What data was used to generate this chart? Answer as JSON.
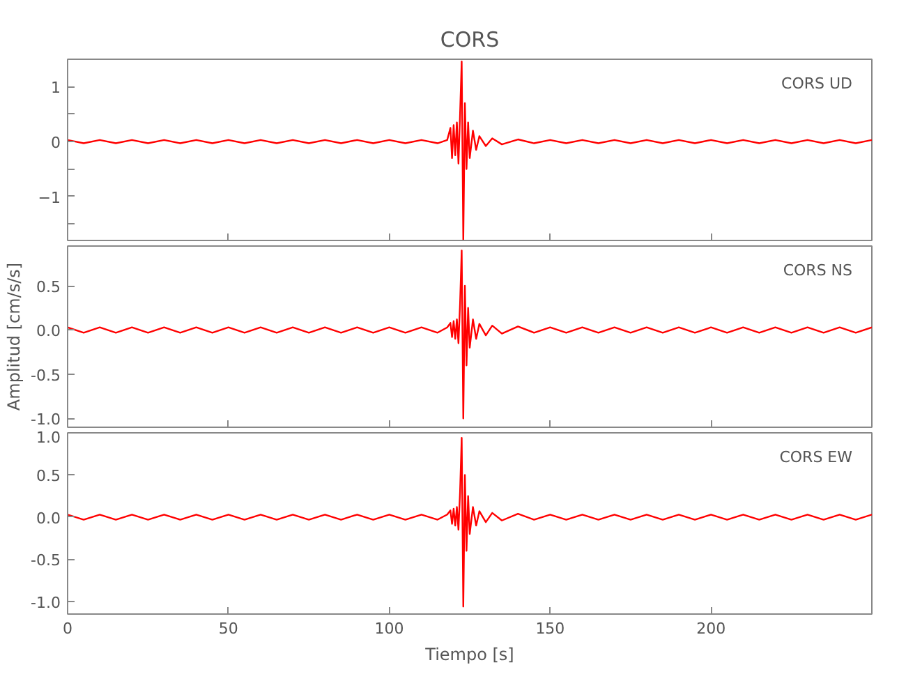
{
  "chart_data": [
    {
      "type": "line",
      "title": "CORS",
      "annotations": [
        "CORS   UD"
      ],
      "xlim": [
        0,
        250
      ],
      "xticks": [
        {
          "value": 0,
          "label": null
        },
        {
          "value": 50,
          "label": null
        },
        {
          "value": 100,
          "label": null
        },
        {
          "value": 150,
          "label": null
        },
        {
          "value": 200,
          "label": null
        }
      ],
      "ylim": [
        -1.8,
        1.5
      ],
      "yticks": [
        {
          "value": -1.5,
          "label": null
        },
        -1,
        {
          "value": -0.5,
          "label": null
        },
        0,
        {
          "value": 0.5,
          "label": null
        },
        1
      ],
      "tick_labels": "y",
      "series": [
        {
          "color": "#ff0000",
          "x": [
            0,
            5,
            10,
            15,
            20,
            25,
            30,
            35,
            40,
            45,
            50,
            55,
            60,
            65,
            70,
            75,
            80,
            85,
            90,
            95,
            100,
            105,
            110,
            115,
            118,
            119,
            119.5,
            120,
            120.5,
            121,
            121.5,
            122,
            122.5,
            123,
            123.5,
            124,
            124.5,
            125,
            126,
            127,
            128,
            130,
            132,
            135,
            140,
            145,
            150,
            155,
            160,
            165,
            170,
            175,
            180,
            185,
            190,
            195,
            200,
            205,
            210,
            215,
            220,
            225,
            230,
            235,
            240,
            245,
            250
          ],
          "values": [
            0.03,
            -0.03,
            0.03,
            -0.03,
            0.03,
            -0.03,
            0.03,
            -0.03,
            0.03,
            -0.03,
            0.03,
            -0.03,
            0.03,
            -0.03,
            0.03,
            -0.03,
            0.03,
            -0.03,
            0.03,
            -0.03,
            0.03,
            -0.03,
            0.03,
            -0.03,
            0.03,
            0.25,
            -0.3,
            0.3,
            -0.25,
            0.35,
            -0.4,
            0.5,
            1.46,
            -1.8,
            0.7,
            -0.5,
            0.35,
            -0.3,
            0.2,
            -0.15,
            0.1,
            -0.08,
            0.06,
            -0.05,
            0.04,
            -0.03,
            0.03,
            -0.03,
            0.03,
            -0.03,
            0.03,
            -0.03,
            0.03,
            -0.03,
            0.03,
            -0.03,
            0.03,
            -0.03,
            0.03,
            -0.03,
            0.03,
            -0.03,
            0.03,
            -0.03,
            0.03,
            -0.03,
            0.03
          ]
        }
      ]
    },
    {
      "type": "line",
      "ylabel": "Amplitud [cm/s/s]",
      "annotations": [
        "CORS   NS"
      ],
      "xlim": [
        0,
        250
      ],
      "xticks": [
        {
          "value": 0,
          "label": null
        },
        {
          "value": 50,
          "label": null
        },
        {
          "value": 100,
          "label": null
        },
        {
          "value": 150,
          "label": null
        },
        {
          "value": 200,
          "label": null
        }
      ],
      "ylim": [
        -1.1,
        0.95
      ],
      "yticks": [
        {
          "value": -1,
          "label": "-1.0"
        },
        {
          "value": -0.5,
          "label": "-0.5"
        },
        {
          "value": 0,
          "label": "0.0"
        },
        {
          "value": 0.5,
          "label": "0.5"
        }
      ],
      "tick_labels": "y",
      "series": [
        {
          "color": "#ff0000",
          "x": [
            0,
            5,
            10,
            15,
            20,
            25,
            30,
            35,
            40,
            45,
            50,
            55,
            60,
            65,
            70,
            75,
            80,
            85,
            90,
            95,
            100,
            105,
            110,
            115,
            118,
            119,
            119.5,
            120,
            120.5,
            121,
            121.5,
            122,
            122.5,
            123,
            123.5,
            124,
            124.5,
            125,
            126,
            127,
            128,
            130,
            132,
            135,
            140,
            145,
            150,
            155,
            160,
            165,
            170,
            175,
            180,
            185,
            190,
            195,
            200,
            205,
            210,
            215,
            220,
            225,
            230,
            235,
            240,
            245,
            250
          ],
          "values": [
            0.03,
            -0.03,
            0.03,
            -0.03,
            0.03,
            -0.03,
            0.03,
            -0.03,
            0.03,
            -0.03,
            0.03,
            -0.03,
            0.03,
            -0.03,
            0.03,
            -0.03,
            0.03,
            -0.03,
            0.03,
            -0.03,
            0.03,
            -0.03,
            0.03,
            -0.03,
            0.03,
            0.08,
            -0.08,
            0.1,
            -0.1,
            0.12,
            -0.15,
            0.3,
            0.9,
            -1.0,
            0.5,
            -0.4,
            0.25,
            -0.2,
            0.12,
            -0.1,
            0.07,
            -0.06,
            0.05,
            -0.04,
            0.04,
            -0.03,
            0.03,
            -0.03,
            0.03,
            -0.03,
            0.03,
            -0.03,
            0.03,
            -0.03,
            0.03,
            -0.03,
            0.03,
            -0.03,
            0.03,
            -0.03,
            0.03,
            -0.03,
            0.03,
            -0.03,
            0.03,
            -0.03,
            0.03
          ]
        }
      ]
    },
    {
      "type": "line",
      "xlabel": "Tiempo [s]",
      "annotations": [
        "CORS   EW"
      ],
      "xlim": [
        0,
        250
      ],
      "xticks": [
        0,
        50,
        100,
        150,
        200
      ],
      "ylim": [
        -1.15,
        1.0
      ],
      "yticks": [
        {
          "value": -1,
          "label": "-1.0"
        },
        {
          "value": -0.5,
          "label": "-0.5"
        },
        {
          "value": 0,
          "label": "0.0"
        },
        {
          "value": 0.5,
          "label": "0.5"
        },
        {
          "value": 1,
          "label": "1.0"
        }
      ],
      "series": [
        {
          "color": "#ff0000",
          "x": [
            0,
            5,
            10,
            15,
            20,
            25,
            30,
            35,
            40,
            45,
            50,
            55,
            60,
            65,
            70,
            75,
            80,
            85,
            90,
            95,
            100,
            105,
            110,
            115,
            118,
            119,
            119.5,
            120,
            120.5,
            121,
            121.5,
            122,
            122.5,
            123,
            123.5,
            124,
            124.5,
            125,
            126,
            127,
            128,
            130,
            132,
            135,
            140,
            145,
            150,
            155,
            160,
            165,
            170,
            175,
            180,
            185,
            190,
            195,
            200,
            205,
            210,
            215,
            220,
            225,
            230,
            235,
            240,
            245,
            250
          ],
          "values": [
            0.03,
            -0.03,
            0.03,
            -0.03,
            0.03,
            -0.03,
            0.03,
            -0.03,
            0.03,
            -0.03,
            0.03,
            -0.03,
            0.03,
            -0.03,
            0.03,
            -0.03,
            0.03,
            -0.03,
            0.03,
            -0.03,
            0.03,
            -0.03,
            0.03,
            -0.03,
            0.03,
            0.08,
            -0.08,
            0.1,
            -0.1,
            0.12,
            -0.15,
            0.3,
            0.94,
            -1.06,
            0.5,
            -0.4,
            0.25,
            -0.2,
            0.12,
            -0.1,
            0.07,
            -0.06,
            0.05,
            -0.04,
            0.04,
            -0.03,
            0.03,
            -0.03,
            0.03,
            -0.03,
            0.03,
            -0.03,
            0.03,
            -0.03,
            0.03,
            -0.03,
            0.03,
            -0.03,
            0.03,
            -0.03,
            0.03,
            -0.03,
            0.03,
            -0.03,
            0.03,
            -0.03,
            0.03
          ]
        }
      ]
    }
  ]
}
